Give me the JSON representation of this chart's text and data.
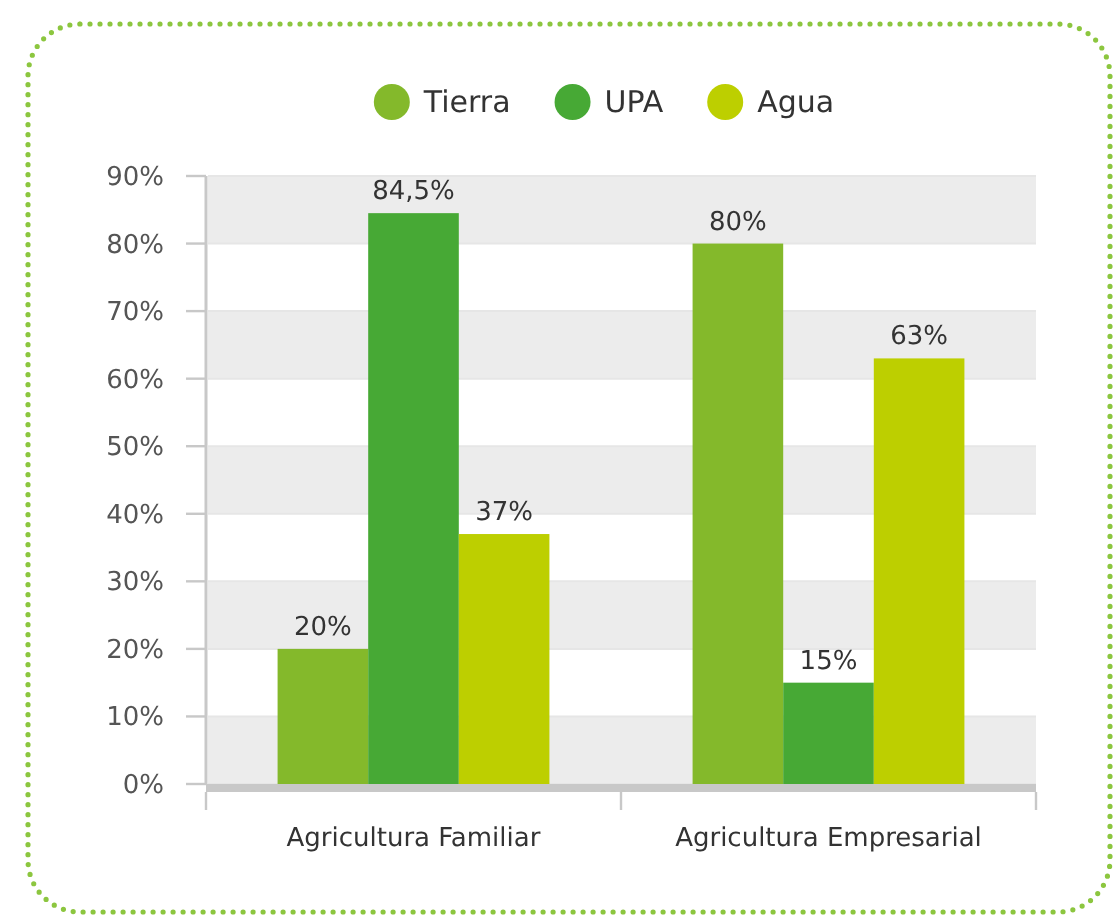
{
  "chart_data": {
    "type": "bar",
    "categories": [
      "Agricultura Familiar",
      "Agricultura Empresarial"
    ],
    "series": [
      {
        "name": "Tierra",
        "color": "#84b92b",
        "values": [
          20,
          80
        ],
        "value_labels": [
          "20%",
          "80%"
        ]
      },
      {
        "name": "UPA",
        "color": "#47a935",
        "values": [
          84.5,
          15
        ],
        "value_labels": [
          "84,5%",
          "15%"
        ]
      },
      {
        "name": "Agua",
        "color": "#bdcf00",
        "values": [
          37,
          63
        ],
        "value_labels": [
          "37%",
          "63%"
        ]
      }
    ],
    "ylim": [
      0,
      90
    ],
    "yticks": [
      {
        "value": 0,
        "label": "0%"
      },
      {
        "value": 10,
        "label": "10%"
      },
      {
        "value": 20,
        "label": "20%"
      },
      {
        "value": 30,
        "label": "30%"
      },
      {
        "value": 40,
        "label": "40%"
      },
      {
        "value": 50,
        "label": "50%"
      },
      {
        "value": 60,
        "label": "60%"
      },
      {
        "value": 70,
        "label": "70%"
      },
      {
        "value": 80,
        "label": "80%"
      },
      {
        "value": 90,
        "label": "90%"
      }
    ],
    "grid": "y",
    "legend": "top"
  }
}
